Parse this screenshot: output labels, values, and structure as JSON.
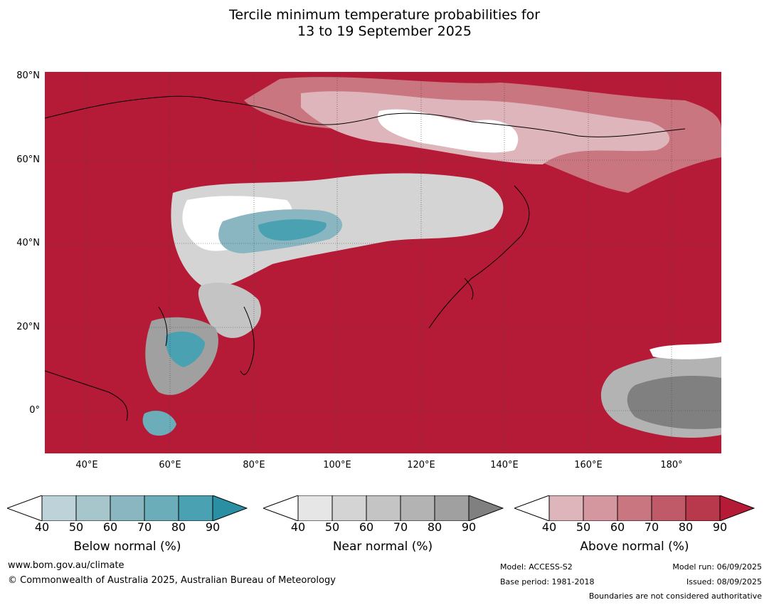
{
  "title": {
    "line1": "Tercile minimum temperature probabilities for",
    "line2": "13 to 19 September 2025"
  },
  "map": {
    "lat_labels": [
      "80°N",
      "60°N",
      "40°N",
      "20°N",
      "0°"
    ],
    "lon_labels": [
      "40°E",
      "60°E",
      "80°E",
      "100°E",
      "120°E",
      "140°E",
      "160°E",
      "180°"
    ]
  },
  "legend": {
    "below": {
      "label": "Below normal (%)",
      "ticks": [
        "40",
        "50",
        "60",
        "70",
        "80",
        "90"
      ],
      "colors": [
        "#ffffff",
        "#bdd3d9",
        "#a6c6cc",
        "#89b6c0",
        "#6baeb9",
        "#4aa1b1",
        "#2b8fa4"
      ]
    },
    "near": {
      "label": "Near normal (%)",
      "ticks": [
        "40",
        "50",
        "60",
        "70",
        "80",
        "90"
      ],
      "colors": [
        "#ffffff",
        "#e6e6e6",
        "#d4d4d4",
        "#c4c4c4",
        "#b3b3b3",
        "#a0a0a0",
        "#808080"
      ]
    },
    "above": {
      "label": "Above normal (%)",
      "ticks": [
        "40",
        "50",
        "60",
        "70",
        "80",
        "90"
      ],
      "colors": [
        "#ffffff",
        "#ddb5bb",
        "#d4979f",
        "#c97680",
        "#c05a68",
        "#b8384c",
        "#b51b36"
      ]
    }
  },
  "footer": {
    "url": "www.bom.gov.au/climate",
    "copyright": "© Commonwealth of Australia 2025, Australian Bureau of Meteorology",
    "model": "Model: ACCESS-S2",
    "base_period": "Base period: 1981-2018",
    "model_run": "Model run: 06/09/2025",
    "issued": "Issued: 08/09/2025",
    "disclaimer": "Boundaries are not considered authoritative"
  }
}
